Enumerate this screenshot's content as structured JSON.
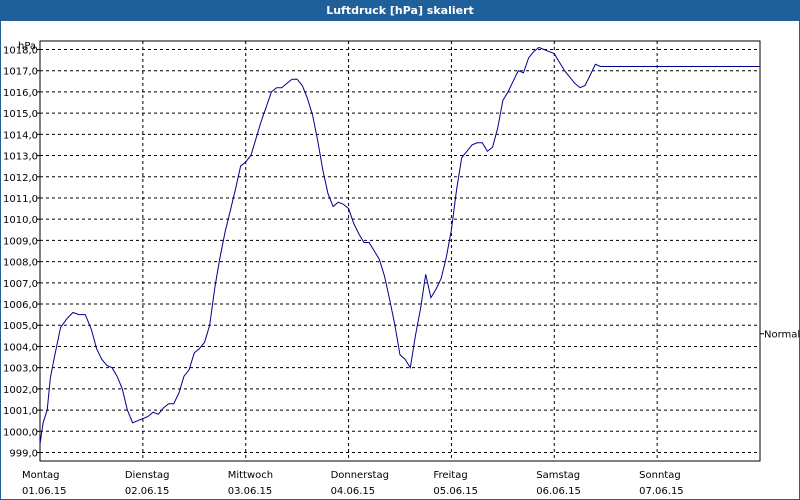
{
  "window": {
    "title": "Luftdruck [hPa] skaliert"
  },
  "chart_data": {
    "type": "line",
    "title": "Luftdruck [hPa] skaliert",
    "ylabel": "hPa",
    "ylim": [
      998.6,
      1018.4
    ],
    "yticks": [
      999,
      1000,
      1001,
      1002,
      1003,
      1004,
      1005,
      1006,
      1007,
      1008,
      1009,
      1010,
      1011,
      1012,
      1013,
      1014,
      1015,
      1016,
      1017,
      1018
    ],
    "ytick_labels": [
      "999,0",
      "1000,0",
      "1001,0",
      "1002,0",
      "1003,0",
      "1004,0",
      "1005,0",
      "1006,0",
      "1007,0",
      "1008,0",
      "1009,0",
      "1010,0",
      "1011,0",
      "1012,0",
      "1013,0",
      "1014,0",
      "1015,0",
      "1016,0",
      "1017,0",
      "1018,0"
    ],
    "xlim": [
      0,
      7
    ],
    "x_days": [
      {
        "day": "Montag",
        "date": "01.06.15"
      },
      {
        "day": "Dienstag",
        "date": "02.06.15"
      },
      {
        "day": "Mittwoch",
        "date": "03.06.15"
      },
      {
        "day": "Donnerstag",
        "date": "04.06.15"
      },
      {
        "day": "Freitag",
        "date": "05.06.15"
      },
      {
        "day": "Samstag",
        "date": "06.06.15"
      },
      {
        "day": "Sonntag",
        "date": "07.06.15"
      }
    ],
    "grid": true,
    "reference_label": "Normal",
    "reference_value": 1004.6,
    "line_color": "#00008b",
    "series": [
      {
        "x": [
          0,
          0.03,
          0.07,
          0.1,
          0.14,
          0.2,
          0.26,
          0.32,
          0.38,
          0.44,
          0.5,
          0.55,
          0.6,
          0.65,
          0.7,
          0.75,
          0.8,
          0.85,
          0.9,
          0.95,
          1.0,
          1.05,
          1.1,
          1.15,
          1.2,
          1.25,
          1.3,
          1.35,
          1.4,
          1.45,
          1.5,
          1.55,
          1.6,
          1.65,
          1.7,
          1.75,
          1.8,
          1.85,
          1.9,
          1.95,
          2.0,
          2.05,
          2.1,
          2.15,
          2.2,
          2.25,
          2.3,
          2.35,
          2.4,
          2.45,
          2.5,
          2.55,
          2.6,
          2.65,
          2.7,
          2.75,
          2.8,
          2.85,
          2.9,
          2.95,
          3.0,
          3.05,
          3.1,
          3.15,
          3.2,
          3.25,
          3.3,
          3.35,
          3.4,
          3.45,
          3.5,
          3.55,
          3.6,
          3.65,
          3.7,
          3.75,
          3.8,
          3.85,
          3.9,
          3.95,
          4.0,
          4.05,
          4.1,
          4.15,
          4.2,
          4.25,
          4.3,
          4.35,
          4.4,
          4.45,
          4.5,
          4.55,
          4.6,
          4.65,
          4.7,
          4.75,
          4.8,
          4.85,
          4.9,
          4.95,
          5.0,
          5.05,
          5.1,
          5.15,
          5.2,
          5.25,
          5.3,
          5.35,
          5.4,
          5.45,
          5.5,
          5.55,
          5.6,
          5.65,
          5.7,
          5.75,
          5.8,
          5.85,
          5.9,
          5.95,
          6.0,
          6.05,
          6.1,
          6.15,
          6.2,
          6.25,
          6.3,
          6.35,
          6.4,
          6.45,
          6.5,
          6.55,
          6.6,
          6.65,
          6.7,
          6.75,
          6.8,
          6.85,
          6.9,
          6.95,
          7.0
        ],
        "y": [
          999.4,
          1000.4,
          1001.0,
          1002.5,
          1003.5,
          1004.9,
          1005.3,
          1005.6,
          1005.5,
          1005.5,
          1004.8,
          1003.9,
          1003.4,
          1003.1,
          1003.0,
          1002.6,
          1002.0,
          1001.0,
          1000.4,
          1000.5,
          1000.6,
          1000.7,
          1000.9,
          1000.8,
          1001.1,
          1001.3,
          1001.3,
          1001.8,
          1002.6,
          1002.9,
          1003.7,
          1003.9,
          1004.2,
          1005.0,
          1006.8,
          1008.2,
          1009.4,
          1010.4,
          1011.4,
          1012.5,
          1012.7,
          1013.0,
          1013.8,
          1014.6,
          1015.3,
          1016.0,
          1016.2,
          1016.2,
          1016.4,
          1016.6,
          1016.6,
          1016.3,
          1015.7,
          1014.9,
          1013.7,
          1012.3,
          1011.2,
          1010.6,
          1010.8,
          1010.7,
          1010.5,
          1009.8,
          1009.3,
          1008.9,
          1008.9,
          1008.5,
          1008.1,
          1007.3,
          1006.2,
          1005.0,
          1003.6,
          1003.4,
          1003.0,
          1004.5,
          1005.8,
          1007.4,
          1006.3,
          1006.7,
          1007.2,
          1008.2,
          1009.5,
          1011.4,
          1012.9,
          1013.2,
          1013.5,
          1013.6,
          1013.6,
          1013.2,
          1013.4,
          1014.3,
          1015.6,
          1016.0,
          1016.5,
          1017.0,
          1016.9,
          1017.6,
          1017.9,
          1018.1,
          1018.0,
          1017.9,
          1017.8,
          1017.4,
          1017.0,
          1016.7,
          1016.4,
          1016.2,
          1016.3,
          1016.8,
          1017.3,
          1017.2,
          1017.2,
          1017.2,
          1017.2,
          1017.2,
          1017.2,
          1017.2,
          1017.2,
          1017.2,
          1017.2,
          1017.2,
          1017.2,
          1017.2,
          1017.2,
          1017.2,
          1017.2,
          1017.2,
          1017.2,
          1017.2,
          1017.2,
          1017.2,
          1017.2,
          1017.2,
          1017.2,
          1017.2,
          1017.2,
          1017.2,
          1017.2,
          1017.2,
          1017.2,
          1017.2,
          1017.2
        ]
      }
    ]
  }
}
